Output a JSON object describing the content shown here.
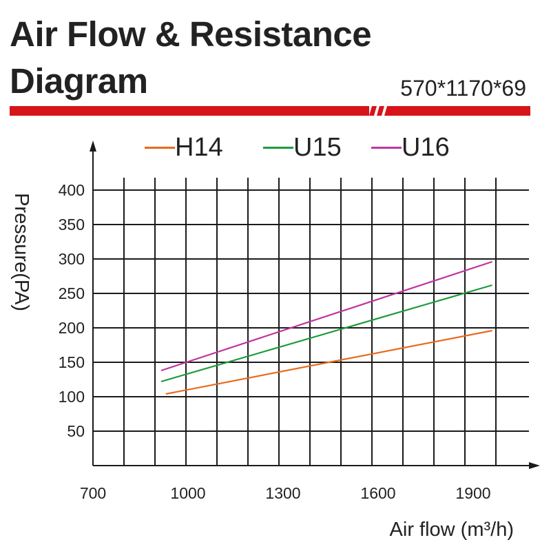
{
  "header": {
    "title_line1": "Air Flow & Resistance",
    "title_line2": "Diagram",
    "dimensions": "570*1170*69",
    "accent_color": "#d7141a"
  },
  "chart_data": {
    "type": "line",
    "xlabel": "Air flow (m³/h)",
    "ylabel": "Pressure(PA)",
    "xlim": [
      700,
      1950
    ],
    "ylim": [
      0,
      420
    ],
    "x_ticks": [
      "700",
      "1000",
      "1300",
      "1600",
      "1900"
    ],
    "y_ticks": [
      "50",
      "100",
      "150",
      "200",
      "250",
      "300",
      "350",
      "400"
    ],
    "grid": true,
    "legend_position": "top",
    "series": [
      {
        "name": "H14",
        "color": "#e86a1c",
        "x": [
          930,
          1960
        ],
        "y": [
          104,
          196
        ]
      },
      {
        "name": "U15",
        "color": "#1e9a3c",
        "x": [
          915,
          1960
        ],
        "y": [
          122,
          262
        ]
      },
      {
        "name": "U16",
        "color": "#c0359f",
        "x": [
          915,
          1960
        ],
        "y": [
          138,
          296
        ]
      }
    ]
  }
}
